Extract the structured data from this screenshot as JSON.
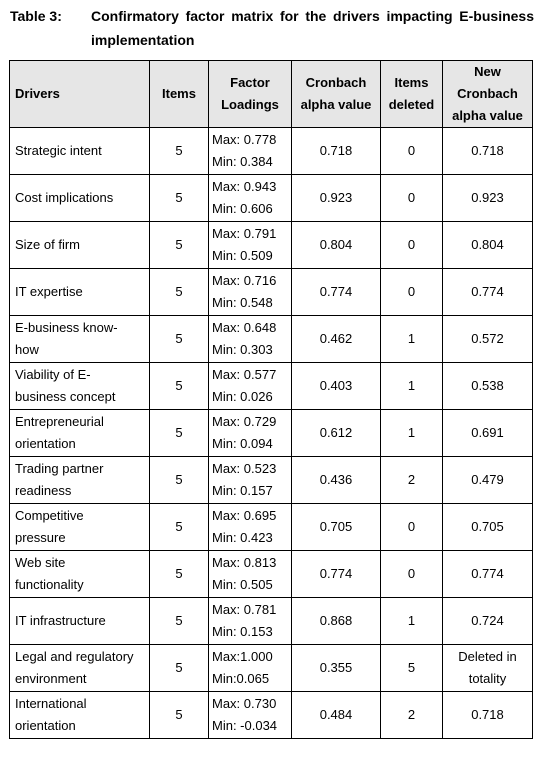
{
  "caption": {
    "label": "Table 3:",
    "title": "Confirmatory factor matrix for the drivers impacting E-business implementation"
  },
  "headers": {
    "drivers": "Drivers",
    "items": "Items",
    "loadings": [
      "Factor",
      "Loadings"
    ],
    "alpha": [
      "Cronbach",
      "alpha value"
    ],
    "deleted": [
      "Items",
      "deleted"
    ],
    "new_alpha": [
      "New",
      "Cronbach",
      "alpha value"
    ]
  },
  "rows": [
    {
      "driver": [
        "Strategic intent"
      ],
      "items": "5",
      "max": "Max: 0.778",
      "min": "Min: 0.384",
      "alpha": "0.718",
      "deleted": "0",
      "new_alpha": [
        "0.718"
      ]
    },
    {
      "driver": [
        "Cost implications"
      ],
      "items": "5",
      "max": "Max: 0.943",
      "min": "Min: 0.606",
      "alpha": "0.923",
      "deleted": "0",
      "new_alpha": [
        "0.923"
      ]
    },
    {
      "driver": [
        "Size of firm"
      ],
      "items": "5",
      "max": "Max: 0.791",
      "min": "Min: 0.509",
      "alpha": "0.804",
      "deleted": "0",
      "new_alpha": [
        "0.804"
      ]
    },
    {
      "driver": [
        "IT expertise"
      ],
      "items": "5",
      "max": "Max: 0.716",
      "min": "Min: 0.548",
      "alpha": "0.774",
      "deleted": "0",
      "new_alpha": [
        "0.774"
      ]
    },
    {
      "driver": [
        "E-business know-",
        "how"
      ],
      "items": "5",
      "max": "Max: 0.648",
      "min": "Min: 0.303",
      "alpha": "0.462",
      "deleted": "1",
      "new_alpha": [
        "0.572"
      ]
    },
    {
      "driver": [
        "Viability of E-",
        "business concept"
      ],
      "items": "5",
      "max": "Max: 0.577",
      "min": "Min: 0.026",
      "alpha": "0.403",
      "deleted": "1",
      "new_alpha": [
        "0.538"
      ]
    },
    {
      "driver": [
        "Entrepreneurial",
        "orientation"
      ],
      "items": "5",
      "max": "Max: 0.729",
      "min": "Min: 0.094",
      "alpha": "0.612",
      "deleted": "1",
      "new_alpha": [
        "0.691"
      ]
    },
    {
      "driver": [
        "Trading partner",
        "readiness"
      ],
      "items": "5",
      "max": "Max: 0.523",
      "min": "Min: 0.157",
      "alpha": "0.436",
      "deleted": "2",
      "new_alpha": [
        "0.479"
      ]
    },
    {
      "driver": [
        "Competitive",
        "pressure"
      ],
      "items": "5",
      "max": "Max: 0.695",
      "min": "Min: 0.423",
      "alpha": "0.705",
      "deleted": "0",
      "new_alpha": [
        "0.705"
      ]
    },
    {
      "driver": [
        "Web site",
        "functionality"
      ],
      "items": "5",
      "max": "Max: 0.813",
      "min": "Min: 0.505",
      "alpha": "0.774",
      "deleted": "0",
      "new_alpha": [
        "0.774"
      ]
    },
    {
      "driver": [
        "IT infrastructure"
      ],
      "items": "5",
      "max": "Max: 0.781",
      "min": "Min: 0.153",
      "alpha": "0.868",
      "deleted": "1",
      "new_alpha": [
        "0.724"
      ]
    },
    {
      "driver": [
        "Legal and regulatory",
        "environment"
      ],
      "items": "5",
      "max": "Max:1.000",
      "min": "Min:0.065",
      "alpha": "0.355",
      "deleted": "5",
      "new_alpha": [
        "Deleted in",
        "totality"
      ]
    },
    {
      "driver": [
        "International",
        "orientation"
      ],
      "items": "5",
      "max": "Max: 0.730",
      "min": "Min: -0.034",
      "alpha": "0.484",
      "deleted": "2",
      "new_alpha": [
        "0.718"
      ]
    }
  ]
}
